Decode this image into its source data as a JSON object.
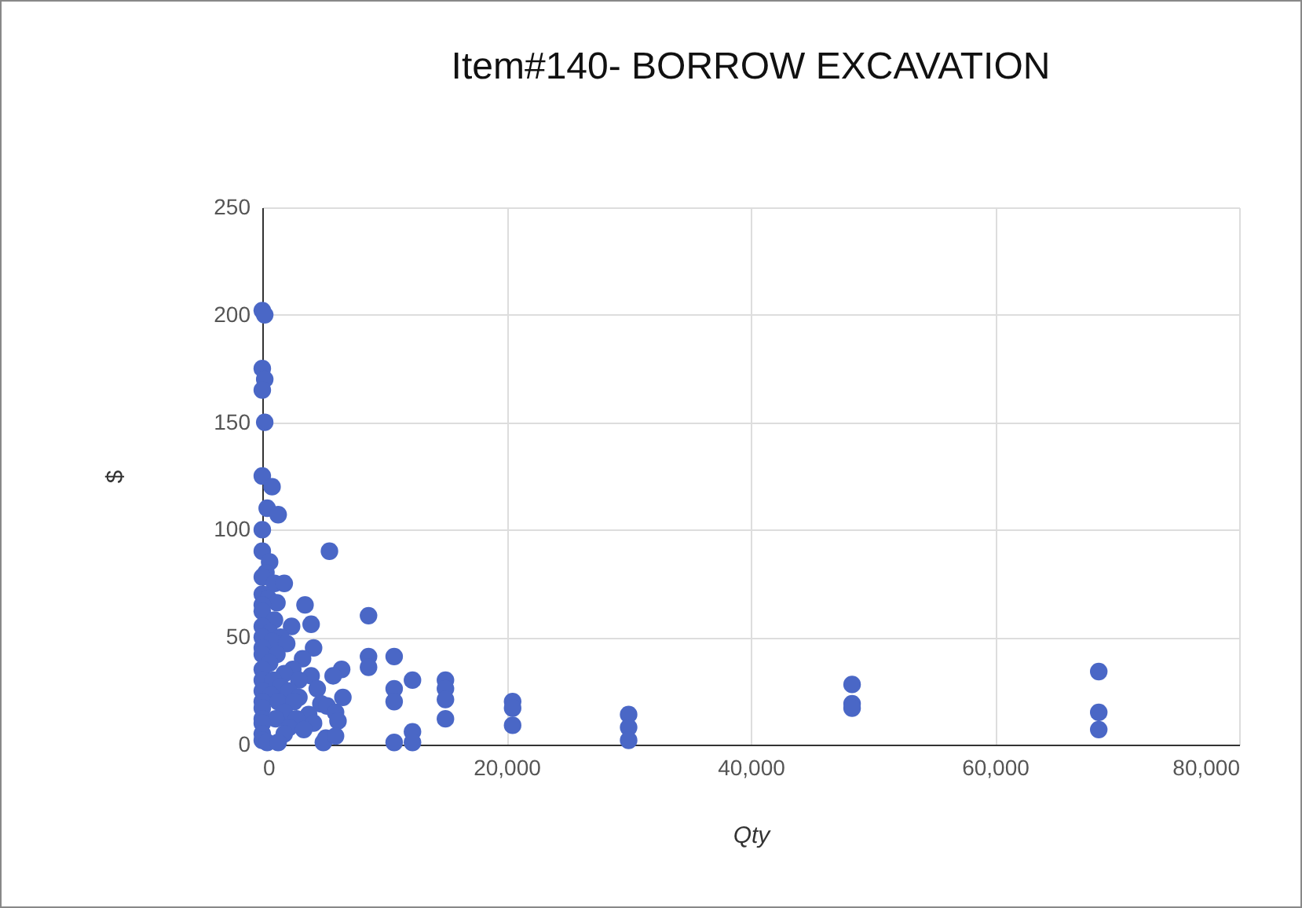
{
  "chart_data": {
    "type": "scatter",
    "title": "Item#140- BORROW EXCAVATION",
    "xlabel": "Qty",
    "ylabel": "$",
    "xlim": [
      0,
      80000
    ],
    "xticks": [
      0,
      {
        "value": 20000,
        "label": "20,000"
      },
      {
        "value": 40000,
        "label": "40,000"
      },
      {
        "value": 60000,
        "label": "60,000"
      },
      {
        "value": 80000,
        "label": "80,000"
      }
    ],
    "ylim": [
      0,
      250
    ],
    "yticks": [
      0,
      50,
      100,
      150,
      200,
      250
    ],
    "grid": true,
    "marker": "circle",
    "x": [
      0,
      200,
      0,
      200,
      0,
      200,
      0,
      800,
      400,
      1300,
      0,
      0,
      600,
      300,
      0,
      1000,
      1800,
      0,
      500,
      1200,
      0,
      0,
      3500,
      1000,
      0,
      2400,
      4000,
      600,
      0,
      1500,
      800,
      0,
      2000,
      4200,
      0,
      1200,
      3300,
      600,
      0,
      2500,
      6500,
      1800,
      4000,
      0,
      900,
      3000,
      5800,
      1500,
      2200,
      4500,
      0,
      700,
      3000,
      6600,
      0,
      1300,
      2600,
      4800,
      5300,
      0,
      1800,
      3800,
      6000,
      0,
      1100,
      2800,
      4200,
      6200,
      0,
      2200,
      3400,
      0,
      1800,
      5200,
      0,
      400,
      1300,
      5000,
      6000,
      5500,
      8700,
      8700,
      8700,
      10800,
      10800,
      10800,
      10800,
      12300,
      12300,
      12300,
      15000,
      15000,
      15000,
      15000,
      20500,
      20500,
      20500,
      30000,
      30000,
      30000,
      48300,
      48300,
      48300,
      68500,
      68500,
      68500
    ],
    "series": [
      {
        "color": "#4a67c6",
        "values": [
          202,
          200,
          175,
          170,
          165,
          150,
          125,
          120,
          110,
          107,
          100,
          90,
          85,
          80,
          78,
          75,
          75,
          70,
          68,
          66,
          65,
          62,
          65,
          58,
          55,
          55,
          56,
          52,
          50,
          50,
          48,
          45,
          47,
          45,
          42,
          42,
          40,
          38,
          35,
          35,
          35,
          33,
          32,
          30,
          30,
          30,
          32,
          27,
          25,
          26,
          25,
          23,
          22,
          22,
          20,
          20,
          20,
          19,
          18,
          17,
          15,
          14,
          15,
          12,
          12,
          12,
          10,
          11,
          10,
          8,
          7,
          5,
          5,
          3,
          2,
          1,
          1,
          1,
          4,
          90,
          60,
          41,
          36,
          41,
          26,
          20,
          1,
          30,
          6,
          1,
          30,
          26,
          21,
          12,
          20,
          17,
          9,
          14,
          8,
          2,
          28,
          19,
          17,
          34,
          15,
          7
        ]
      }
    ]
  }
}
